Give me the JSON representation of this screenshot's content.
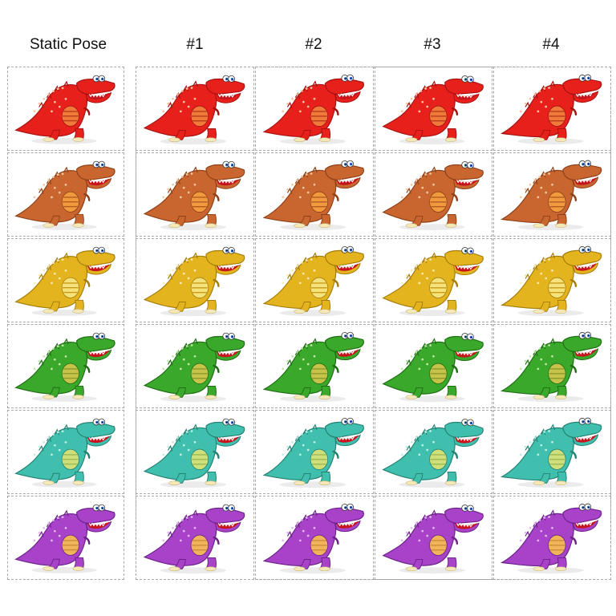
{
  "headers": {
    "static": "Static Pose",
    "frames": [
      "#1",
      "#2",
      "#3",
      "#4"
    ]
  },
  "dinosaurs": [
    {
      "color": "red",
      "body": "#e8201c",
      "dark": "#a51210",
      "belly": "#f07a3a",
      "stripe": "#b83a1a",
      "spots": "#f6c3a0"
    },
    {
      "color": "orange",
      "body": "#c9652e",
      "dark": "#8e4118",
      "belly": "#f19a3d",
      "stripe": "#b05a22",
      "spots": "#f2c7a0"
    },
    {
      "color": "yellow",
      "body": "#e3b41e",
      "dark": "#a57d0c",
      "belly": "#f6e27a",
      "stripe": "#c79a18",
      "spots": "#f8eab0"
    },
    {
      "color": "green",
      "body": "#3aa82a",
      "dark": "#1f6e14",
      "belly": "#c6c24a",
      "stripe": "#8b9a2a",
      "spots": "#bfe7a6"
    },
    {
      "color": "teal",
      "body": "#41bfae",
      "dark": "#238273",
      "belly": "#cfe07a",
      "stripe": "#9bb856",
      "spots": "#bfeee4"
    },
    {
      "color": "purple",
      "body": "#a742c9",
      "dark": "#6d2289",
      "belly": "#f0b55a",
      "stripe": "#d08a3a",
      "spots": "#e1b8ef"
    }
  ]
}
